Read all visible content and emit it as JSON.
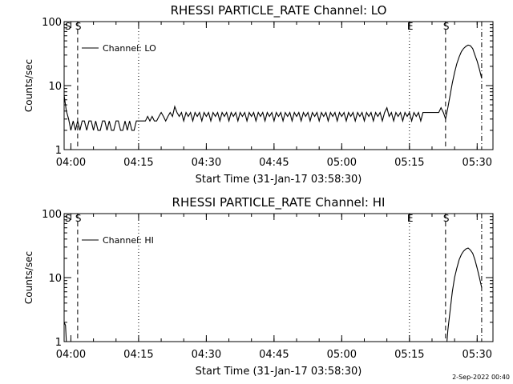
{
  "footer": {
    "timestamp": "2-Sep-2022 00:40"
  },
  "colors": {
    "axis": "#000000",
    "background": "#ffffff",
    "line": "#000000"
  },
  "chart_data": [
    {
      "type": "line",
      "title": "RHESSI PARTICLE_RATE Channel: LO",
      "xlabel": "Start Time (31-Jan-17 03:58:30)",
      "ylabel": "Counts/sec",
      "yscale": "log",
      "ylim": [
        1,
        100
      ],
      "xlim": [
        0,
        95
      ],
      "y_ticks": [
        {
          "value": 1,
          "label": "1"
        },
        {
          "value": 10,
          "label": "10"
        },
        {
          "value": 100,
          "label": "100"
        }
      ],
      "x_ticks": [
        {
          "value": 1.5,
          "label": "04:00"
        },
        {
          "value": 16.5,
          "label": "04:15"
        },
        {
          "value": 31.5,
          "label": "04:30"
        },
        {
          "value": 46.5,
          "label": "04:45"
        },
        {
          "value": 61.5,
          "label": "05:00"
        },
        {
          "value": 76.5,
          "label": "05:15"
        },
        {
          "value": 91.5,
          "label": "05:30"
        }
      ],
      "legend": {
        "label": "Channel: LO",
        "position": "top-left"
      },
      "markers": [
        {
          "x": 3.0,
          "style": "dashed",
          "label": "S"
        },
        {
          "x": 16.5,
          "style": "dotted",
          "label": ""
        },
        {
          "x": 76.5,
          "style": "dotted",
          "label": "E"
        },
        {
          "x": 84.5,
          "style": "dashed",
          "label": "S"
        },
        {
          "x": 92.5,
          "style": "dashdot",
          "label": ""
        }
      ],
      "series": [
        {
          "name": "Channel: LO",
          "points": [
            [
              0,
              7
            ],
            [
              0.5,
              4
            ],
            [
              1,
              3
            ],
            [
              1.5,
              2
            ],
            [
              2,
              2.8
            ],
            [
              2.5,
              2
            ],
            [
              3,
              2.8
            ],
            [
              3.5,
              2
            ],
            [
              4,
              2.8
            ],
            [
              4.5,
              2.8
            ],
            [
              5,
              2
            ],
            [
              5.5,
              2.8
            ],
            [
              6,
              2.8
            ],
            [
              6.5,
              2
            ],
            [
              7,
              2.8
            ],
            [
              7.5,
              2
            ],
            [
              8,
              2
            ],
            [
              8.5,
              2.8
            ],
            [
              9,
              2.8
            ],
            [
              9.5,
              2
            ],
            [
              10,
              2.8
            ],
            [
              10.5,
              2
            ],
            [
              11,
              2
            ],
            [
              11.5,
              2.8
            ],
            [
              12,
              2.8
            ],
            [
              12.5,
              2
            ],
            [
              13,
              2
            ],
            [
              13.5,
              2.8
            ],
            [
              14,
              2
            ],
            [
              14.5,
              2.8
            ],
            [
              15,
              2
            ],
            [
              15.5,
              2
            ],
            [
              16,
              2.8
            ],
            [
              16.5,
              2.8
            ],
            [
              17,
              2.8
            ],
            [
              17.5,
              2.8
            ],
            [
              18,
              2.8
            ],
            [
              18.5,
              3.3
            ],
            [
              19,
              2.8
            ],
            [
              19.5,
              3.3
            ],
            [
              20,
              2.8
            ],
            [
              20.5,
              2.8
            ],
            [
              21,
              3.3
            ],
            [
              21.5,
              3.8
            ],
            [
              22,
              3.3
            ],
            [
              22.5,
              2.8
            ],
            [
              23,
              3.3
            ],
            [
              23.5,
              3.8
            ],
            [
              24,
              3.3
            ],
            [
              24.5,
              4.7
            ],
            [
              25,
              3.8
            ],
            [
              25.5,
              3.3
            ],
            [
              26,
              3.8
            ],
            [
              26.5,
              2.8
            ],
            [
              27,
              3.8
            ],
            [
              27.5,
              3.3
            ],
            [
              28,
              3.8
            ],
            [
              28.5,
              2.8
            ],
            [
              29,
              3.8
            ],
            [
              29.5,
              3.3
            ],
            [
              30,
              3.8
            ],
            [
              30.5,
              2.8
            ],
            [
              31,
              3.8
            ],
            [
              31.5,
              3.3
            ],
            [
              32,
              3.8
            ],
            [
              32.5,
              2.8
            ],
            [
              33,
              3.8
            ],
            [
              33.5,
              3.3
            ],
            [
              34,
              3.8
            ],
            [
              34.5,
              2.8
            ],
            [
              35,
              3.8
            ],
            [
              35.5,
              3.3
            ],
            [
              36,
              3.8
            ],
            [
              36.5,
              2.8
            ],
            [
              37,
              3.8
            ],
            [
              37.5,
              3.3
            ],
            [
              38,
              3.8
            ],
            [
              38.5,
              2.8
            ],
            [
              39,
              3.8
            ],
            [
              39.5,
              3.3
            ],
            [
              40,
              3.8
            ],
            [
              40.5,
              2.8
            ],
            [
              41,
              3.8
            ],
            [
              41.5,
              3.3
            ],
            [
              42,
              3.8
            ],
            [
              42.5,
              2.8
            ],
            [
              43,
              3.8
            ],
            [
              43.5,
              3.3
            ],
            [
              44,
              3.8
            ],
            [
              44.5,
              2.8
            ],
            [
              45,
              3.8
            ],
            [
              45.5,
              3.3
            ],
            [
              46,
              3.8
            ],
            [
              46.5,
              2.8
            ],
            [
              47,
              3.8
            ],
            [
              47.5,
              3.3
            ],
            [
              48,
              3.8
            ],
            [
              48.5,
              2.8
            ],
            [
              49,
              3.8
            ],
            [
              49.5,
              3.3
            ],
            [
              50,
              3.8
            ],
            [
              50.5,
              2.8
            ],
            [
              51,
              3.8
            ],
            [
              51.5,
              3.3
            ],
            [
              52,
              3.8
            ],
            [
              52.5,
              2.8
            ],
            [
              53,
              3.8
            ],
            [
              53.5,
              3.3
            ],
            [
              54,
              3.8
            ],
            [
              54.5,
              2.8
            ],
            [
              55,
              3.8
            ],
            [
              55.5,
              3.3
            ],
            [
              56,
              3.8
            ],
            [
              56.5,
              2.8
            ],
            [
              57,
              3.8
            ],
            [
              57.5,
              3.3
            ],
            [
              58,
              3.8
            ],
            [
              58.5,
              2.8
            ],
            [
              59,
              3.8
            ],
            [
              59.5,
              3.3
            ],
            [
              60,
              3.8
            ],
            [
              60.5,
              2.8
            ],
            [
              61,
              3.8
            ],
            [
              61.5,
              3.3
            ],
            [
              62,
              3.8
            ],
            [
              62.5,
              2.8
            ],
            [
              63,
              3.8
            ],
            [
              63.5,
              3.3
            ],
            [
              64,
              3.8
            ],
            [
              64.5,
              2.8
            ],
            [
              65,
              3.8
            ],
            [
              65.5,
              3.3
            ],
            [
              66,
              3.8
            ],
            [
              66.5,
              2.8
            ],
            [
              67,
              3.8
            ],
            [
              67.5,
              3.3
            ],
            [
              68,
              3.8
            ],
            [
              68.5,
              2.8
            ],
            [
              69,
              3.8
            ],
            [
              69.5,
              3.3
            ],
            [
              70,
              3.8
            ],
            [
              70.5,
              2.8
            ],
            [
              71,
              3.8
            ],
            [
              71.5,
              4.5
            ],
            [
              72,
              3.3
            ],
            [
              72.5,
              3.8
            ],
            [
              73,
              2.8
            ],
            [
              73.5,
              3.8
            ],
            [
              74,
              3.3
            ],
            [
              74.5,
              3.8
            ],
            [
              75,
              2.8
            ],
            [
              75.5,
              3.8
            ],
            [
              76,
              3.3
            ],
            [
              76.5,
              3.8
            ],
            [
              77,
              2.8
            ],
            [
              77.5,
              3.8
            ],
            [
              78,
              3.3
            ],
            [
              78.5,
              3.8
            ],
            [
              79,
              2.8
            ],
            [
              79.5,
              3.8
            ],
            [
              80,
              3.8
            ],
            [
              81,
              3.8
            ],
            [
              82,
              3.8
            ],
            [
              83,
              3.8
            ],
            [
              83.5,
              4.5
            ],
            [
              84,
              3.8
            ],
            [
              84.5,
              3.0
            ],
            [
              85,
              4.5
            ],
            [
              85.5,
              7
            ],
            [
              86,
              11
            ],
            [
              86.5,
              16
            ],
            [
              87,
              22
            ],
            [
              87.5,
              28
            ],
            [
              88,
              34
            ],
            [
              88.5,
              38
            ],
            [
              89,
              41
            ],
            [
              89.5,
              43
            ],
            [
              90,
              42
            ],
            [
              90.5,
              38
            ],
            [
              91,
              30
            ],
            [
              91.5,
              24
            ],
            [
              92,
              18
            ],
            [
              92.5,
              13
            ]
          ]
        }
      ]
    },
    {
      "type": "line",
      "title": "RHESSI PARTICLE_RATE Channel: HI",
      "xlabel": "Start Time (31-Jan-17 03:58:30)",
      "ylabel": "Counts/sec",
      "yscale": "log",
      "ylim": [
        1,
        100
      ],
      "xlim": [
        0,
        95
      ],
      "y_ticks": [
        {
          "value": 1,
          "label": "1"
        },
        {
          "value": 10,
          "label": "10"
        },
        {
          "value": 100,
          "label": "100"
        }
      ],
      "x_ticks": [
        {
          "value": 1.5,
          "label": "04:00"
        },
        {
          "value": 16.5,
          "label": "04:15"
        },
        {
          "value": 31.5,
          "label": "04:30"
        },
        {
          "value": 46.5,
          "label": "04:45"
        },
        {
          "value": 61.5,
          "label": "05:00"
        },
        {
          "value": 76.5,
          "label": "05:15"
        },
        {
          "value": 91.5,
          "label": "05:30"
        }
      ],
      "legend": {
        "label": "Channel: HI",
        "position": "top-left"
      },
      "markers": [
        {
          "x": 3.0,
          "style": "dashed",
          "label": "S"
        },
        {
          "x": 16.5,
          "style": "dotted",
          "label": ""
        },
        {
          "x": 76.5,
          "style": "dotted",
          "label": "E"
        },
        {
          "x": 84.5,
          "style": "dashed",
          "label": "S"
        },
        {
          "x": 92.5,
          "style": "dashdot",
          "label": ""
        }
      ],
      "series": [
        {
          "name": "Channel: HI",
          "points": [
            [
              0,
              2
            ],
            [
              0.3,
              1.8
            ],
            [
              0.5,
              1.0
            ]
          ]
        },
        {
          "name": "Channel: HI",
          "points": [
            [
              84.8,
              1.0
            ],
            [
              85,
              1.5
            ],
            [
              85.5,
              3
            ],
            [
              86,
              6
            ],
            [
              86.5,
              10
            ],
            [
              87,
              14
            ],
            [
              87.5,
              19
            ],
            [
              88,
              23
            ],
            [
              88.5,
              26
            ],
            [
              89,
              28
            ],
            [
              89.5,
              29
            ],
            [
              90,
              27
            ],
            [
              90.5,
              24
            ],
            [
              91,
              19
            ],
            [
              91.5,
              14
            ],
            [
              92,
              10
            ],
            [
              92.5,
              7
            ]
          ]
        }
      ]
    }
  ]
}
